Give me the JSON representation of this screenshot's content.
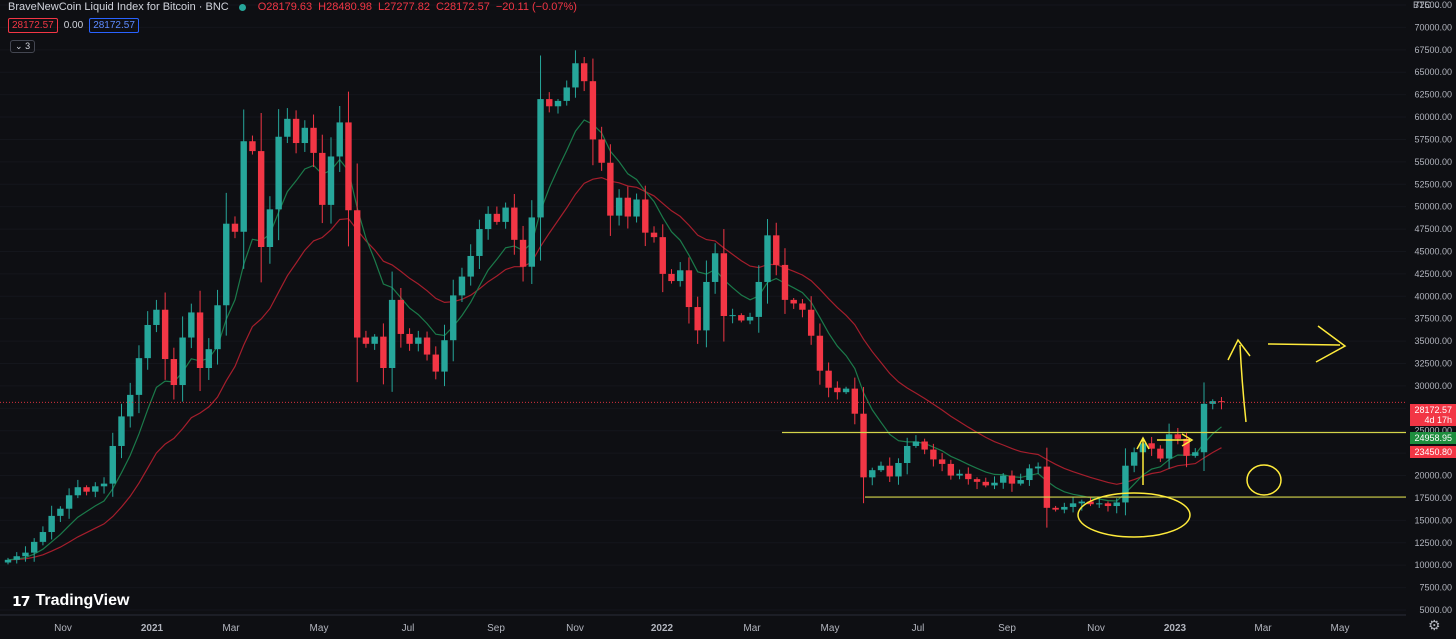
{
  "header": {
    "title": "BraveNewCoin Liquid Index for Bitcoin · BNC",
    "open": "O28179.63",
    "high": "H28480.98",
    "low": "L27277.82",
    "close": "C28172.57",
    "change": "−20.11 (−0.07%)",
    "sell_price": "28172.57",
    "spread": "0.00",
    "buy_price": "28172.57",
    "indicators_count": "3"
  },
  "currency": "BTC",
  "logo_text": "TradingView",
  "colors": {
    "background": "#0e0f13",
    "up": "#26a69a",
    "down": "#f23645",
    "ema_fast": "#1b7a4a",
    "ema_slow": "#a51e2c",
    "annotation": "#ffeb3b",
    "level_line": "#d4d44a"
  },
  "chart_data": {
    "type": "candlestick",
    "interval": "weekly",
    "x_ticks": [
      "Nov",
      "2021",
      "Mar",
      "May",
      "Jul",
      "Sep",
      "Nov",
      "2022",
      "Mar",
      "May",
      "Jul",
      "Sep",
      "Nov",
      "2023",
      "Mar",
      "May"
    ],
    "y_ticks": [
      "72500.00",
      "70000.00",
      "67500.00",
      "65000.00",
      "62500.00",
      "60000.00",
      "57500.00",
      "55000.00",
      "52500.00",
      "50000.00",
      "47500.00",
      "45000.00",
      "42500.00",
      "40000.00",
      "37500.00",
      "35000.00",
      "32500.00",
      "30000.00",
      "27500.00",
      "25000.00",
      "22500.00",
      "20000.00",
      "17500.00",
      "15000.00",
      "12500.00",
      "10000.00",
      "7500.00",
      "5000.00"
    ],
    "ylim": [
      3500,
      74500
    ],
    "price_labels": {
      "last": {
        "value": "28172.57",
        "sub": "4d 17h"
      },
      "ema_fast": "24958.95",
      "ema_slow": "23450.80"
    },
    "levels": [
      24800,
      17600
    ],
    "closes": [
      10600,
      11000,
      11400,
      12600,
      13700,
      15500,
      16300,
      17800,
      18700,
      18200,
      18800,
      19100,
      23300,
      26600,
      29000,
      33100,
      36800,
      38500,
      33000,
      30100,
      35400,
      38200,
      32000,
      34100,
      39000,
      48100,
      47200,
      57300,
      56200,
      45500,
      49700,
      57800,
      59800,
      57100,
      58800,
      56000,
      50200,
      55600,
      59400,
      49600,
      35400,
      34700,
      35500,
      32000,
      39600,
      35800,
      34700,
      35400,
      33500,
      31600,
      35100,
      40100,
      42200,
      44500,
      47500,
      49200,
      48300,
      49900,
      46300,
      43300,
      48800,
      62000,
      61200,
      61800,
      63300,
      66000,
      64000,
      57500,
      54900,
      49000,
      51000,
      48900,
      50800,
      47100,
      46600,
      42500,
      41700,
      42900,
      38800,
      36200,
      41600,
      44800,
      37800,
      37900,
      37300,
      37700,
      41600,
      46800,
      43500,
      39600,
      39200,
      38500,
      35600,
      31700,
      29800,
      29300,
      29700,
      26900,
      19800,
      20600,
      21100,
      19900,
      21400,
      23300,
      23800,
      22900,
      21800,
      21300,
      20000,
      20200,
      19600,
      19300,
      18900,
      19200,
      20000,
      19100,
      19500,
      20800,
      21000,
      16400,
      16200,
      16500,
      16900,
      17100,
      16800,
      16900,
      16600,
      17000,
      21100,
      22600,
      23600,
      23000,
      21900,
      24600,
      24100,
      22200,
      22600,
      28000,
      28300,
      28200
    ]
  }
}
